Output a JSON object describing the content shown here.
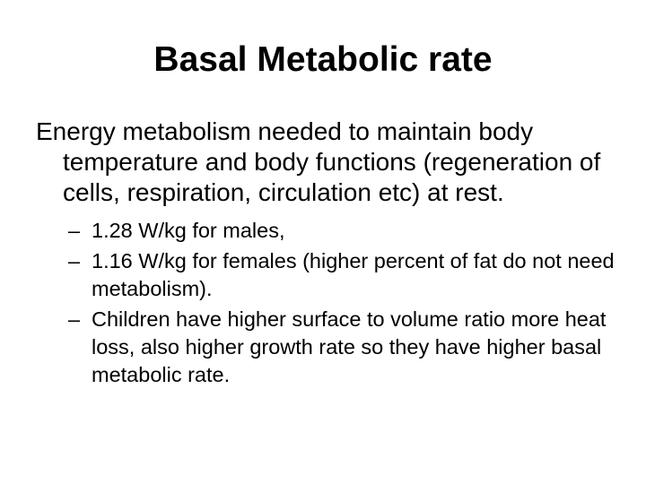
{
  "slide": {
    "title": "Basal Metabolic rate",
    "main_text": "Energy metabolism needed to maintain body temperature and body functions (regeneration of cells, respiration, circulation etc) at rest.",
    "bullet_marker": "–",
    "sub_items": [
      "1.28 W/kg for males,",
      "1.16 W/kg for females (higher percent of fat do not need metabolism).",
      "Children have higher surface to volume ratio more heat loss, also higher growth rate so they have higher basal metabolic rate."
    ]
  }
}
